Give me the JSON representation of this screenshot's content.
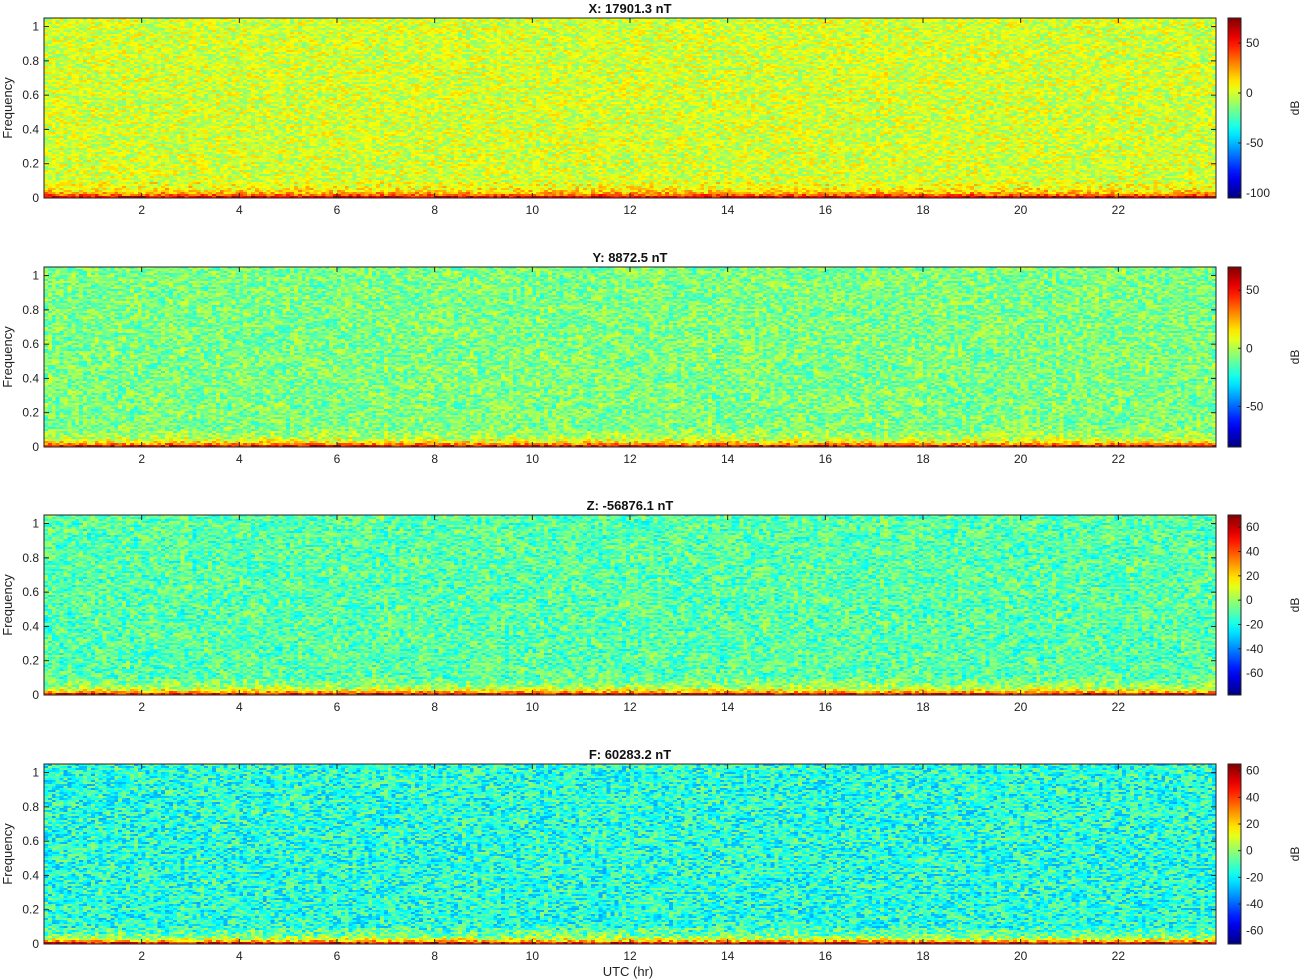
{
  "figure": {
    "xlabel": "UTC (hr)",
    "colormap": "jet"
  },
  "chart_data": [
    {
      "type": "heatmap",
      "title": "X: 17901.3 nT",
      "ylabel": "Frequency",
      "xlim": [
        0,
        24
      ],
      "ylim": [
        0,
        1.05
      ],
      "x_ticks": [
        2,
        4,
        6,
        8,
        10,
        12,
        14,
        16,
        18,
        20,
        22
      ],
      "y_ticks": [
        0,
        0.2,
        0.4,
        0.6,
        0.8,
        1
      ],
      "colorbar": {
        "label": "dB",
        "range": [
          -105,
          75
        ],
        "ticks": [
          50,
          0,
          -50,
          -100
        ]
      },
      "background_level_db": 0,
      "low_frequency_level_db": 70
    },
    {
      "type": "heatmap",
      "title": "Y: 8872.5 nT",
      "ylabel": "Frequency",
      "xlim": [
        0,
        24
      ],
      "ylim": [
        0,
        1.05
      ],
      "x_ticks": [
        2,
        4,
        6,
        8,
        10,
        12,
        14,
        16,
        18,
        20,
        22
      ],
      "y_ticks": [
        0,
        0.2,
        0.4,
        0.6,
        0.8,
        1
      ],
      "colorbar": {
        "label": "dB",
        "range": [
          -85,
          70
        ],
        "ticks": [
          50,
          0,
          -50
        ]
      },
      "background_level_db": -8,
      "low_frequency_level_db": 65
    },
    {
      "type": "heatmap",
      "title": "Z: -56876.1 nT",
      "ylabel": "Frequency",
      "xlim": [
        0,
        24
      ],
      "ylim": [
        0,
        1.05
      ],
      "x_ticks": [
        2,
        4,
        6,
        8,
        10,
        12,
        14,
        16,
        18,
        20,
        22
      ],
      "y_ticks": [
        0,
        0.2,
        0.4,
        0.6,
        0.8,
        1
      ],
      "colorbar": {
        "label": "dB",
        "range": [
          -78,
          70
        ],
        "ticks": [
          60,
          40,
          20,
          0,
          -20,
          -40,
          -60
        ]
      },
      "background_level_db": -10,
      "low_frequency_level_db": 65
    },
    {
      "type": "heatmap",
      "title": "F: 60283.2 nT",
      "ylabel": "Frequency",
      "xlim": [
        0,
        24
      ],
      "ylim": [
        0,
        1.05
      ],
      "x_ticks": [
        2,
        4,
        6,
        8,
        10,
        12,
        14,
        16,
        18,
        20,
        22
      ],
      "y_ticks": [
        0,
        0.2,
        0.4,
        0.6,
        0.8,
        1
      ],
      "colorbar": {
        "label": "dB",
        "range": [
          -70,
          65
        ],
        "ticks": [
          60,
          40,
          20,
          0,
          -20,
          -40,
          -60
        ]
      },
      "background_level_db": -15,
      "low_frequency_level_db": 62
    }
  ]
}
